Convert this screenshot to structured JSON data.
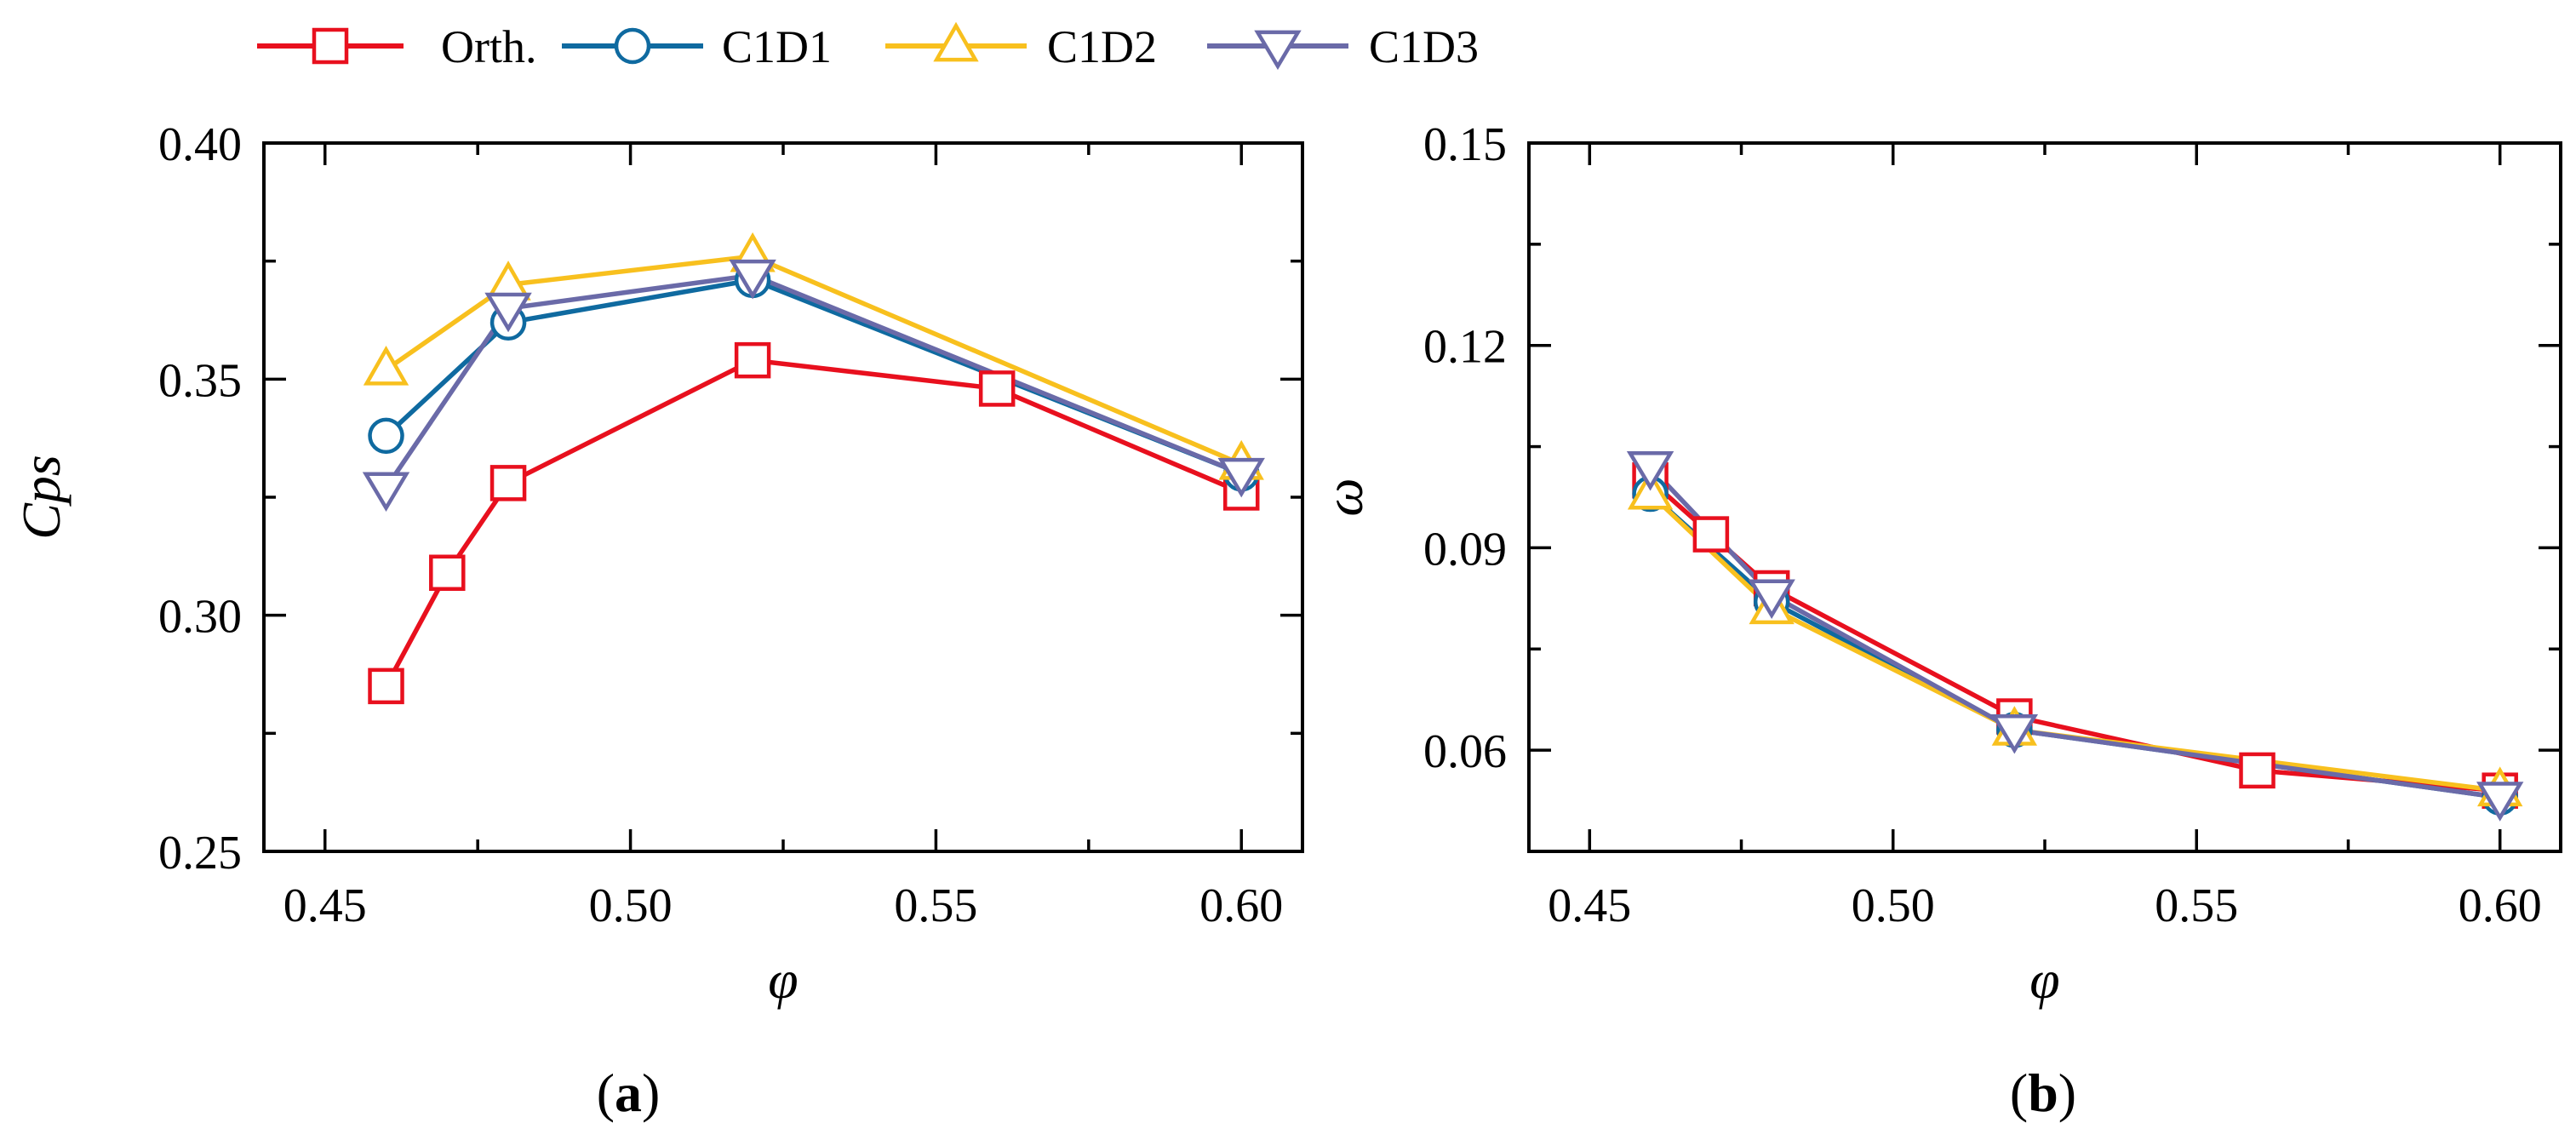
{
  "legend": {
    "placement": "top",
    "entries": [
      {
        "name": "Orth.",
        "color": "#e8101e",
        "marker": "square"
      },
      {
        "name": "C1D1",
        "color": "#0f6aa0",
        "marker": "circle"
      },
      {
        "name": "C1D2",
        "color": "#f8c01e",
        "marker": "triangle-up"
      },
      {
        "name": "C1D3",
        "color": "#6a6aa8",
        "marker": "triangle-down"
      }
    ]
  },
  "chart_data": [
    {
      "type": "line",
      "panel_label": "a",
      "xlabel": "φ",
      "ylabel": "Cps",
      "xlim": [
        0.44,
        0.61
      ],
      "ylim": [
        0.25,
        0.4
      ],
      "xticks": [
        "0.45",
        "0.50",
        "0.55",
        "0.60"
      ],
      "yticks": [
        "0.25",
        "0.30",
        "0.35",
        "0.40"
      ],
      "grid": false,
      "series": [
        {
          "name": "Orth.",
          "x": [
            0.46,
            0.47,
            0.48,
            0.52,
            0.56,
            0.6
          ],
          "y": [
            0.285,
            0.309,
            0.328,
            0.354,
            0.348,
            0.326
          ]
        },
        {
          "name": "C1D1",
          "x": [
            0.46,
            0.48,
            0.52,
            0.6
          ],
          "y": [
            0.338,
            0.362,
            0.371,
            0.33
          ]
        },
        {
          "name": "C1D2",
          "x": [
            0.46,
            0.48,
            0.52,
            0.6
          ],
          "y": [
            0.352,
            0.37,
            0.376,
            0.332
          ]
        },
        {
          "name": "C1D3",
          "x": [
            0.46,
            0.48,
            0.52,
            0.6
          ],
          "y": [
            0.327,
            0.365,
            0.372,
            0.33
          ]
        }
      ]
    },
    {
      "type": "line",
      "panel_label": "b",
      "xlabel": "φ",
      "ylabel": "ω",
      "xlim": [
        0.44,
        0.61
      ],
      "ylim": [
        0.045,
        0.15
      ],
      "xticks": [
        "0.45",
        "0.50",
        "0.55",
        "0.60"
      ],
      "yticks": [
        "0.06",
        "0.09",
        "0.12",
        "0.15"
      ],
      "grid": false,
      "series": [
        {
          "name": "Orth.",
          "x": [
            0.46,
            0.47,
            0.48,
            0.52,
            0.56,
            0.6
          ],
          "y": [
            0.1,
            0.092,
            0.084,
            0.065,
            0.057,
            0.054
          ]
        },
        {
          "name": "C1D1",
          "x": [
            0.46,
            0.48,
            0.52,
            0.6
          ],
          "y": [
            0.098,
            0.082,
            0.063,
            0.053
          ]
        },
        {
          "name": "C1D2",
          "x": [
            0.46,
            0.48,
            0.52,
            0.6
          ],
          "y": [
            0.098,
            0.081,
            0.063,
            0.054
          ]
        },
        {
          "name": "C1D3",
          "x": [
            0.46,
            0.48,
            0.52,
            0.6
          ],
          "y": [
            0.102,
            0.083,
            0.063,
            0.053
          ]
        }
      ]
    }
  ]
}
